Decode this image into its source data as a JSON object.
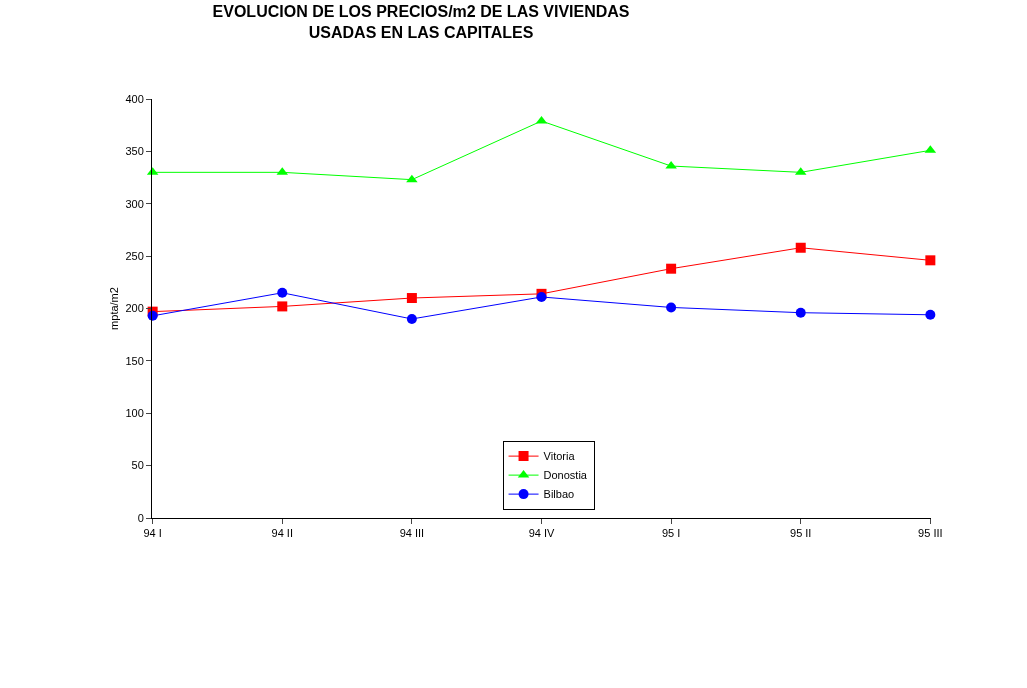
{
  "chart_data": {
    "type": "line",
    "title": "EVOLUCION DE LOS PRECIOS/m2 DE LAS VIVIENDAS\nUSADAS EN LAS CAPITALES",
    "ylabel": "mpta/m2",
    "categories": [
      "94 I",
      "94 II",
      "94 III",
      "94 IV",
      "95 I",
      "95 II",
      "95 III"
    ],
    "series": [
      {
        "name": "Vitoria",
        "color": "#ff0000",
        "marker": "square",
        "values": [
          197,
          202,
          210,
          214,
          238,
          258,
          246
        ]
      },
      {
        "name": "Donostia",
        "color": "#00ff00",
        "marker": "triangle",
        "values": [
          330,
          330,
          323,
          379,
          336,
          330,
          351
        ]
      },
      {
        "name": "Bilbao",
        "color": "#0000ff",
        "marker": "circle",
        "values": [
          193,
          215,
          190,
          211,
          201,
          196,
          194
        ]
      }
    ],
    "ylim": [
      0,
      400
    ],
    "yticks": [
      0,
      50,
      100,
      150,
      200,
      250,
      300,
      350,
      400
    ],
    "legend": "bottom",
    "line_style": "solid"
  }
}
